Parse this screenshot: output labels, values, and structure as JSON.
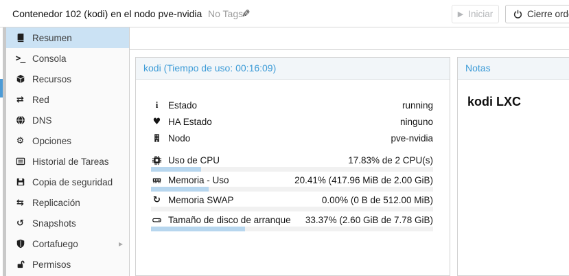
{
  "titlebar": {
    "title": "Contenedor 102 (kodi) en el nodo pve-nvidia",
    "tags_label": "No Tags",
    "start_button": "Iniciar",
    "shutdown_button": "Cierre ordenado"
  },
  "icons": {
    "terminal": ">_",
    "network": "⇄",
    "gear": "⚙",
    "replication": "⇆",
    "history": "↺",
    "chevron_right": "▸",
    "play": "▶",
    "pencil": "✎",
    "swap": "↻",
    "info": "i",
    "heart": "♥"
  },
  "sidebar": {
    "items": [
      {
        "label": "Resumen",
        "icon": "book-icon",
        "selected": true
      },
      {
        "label": "Consola",
        "icon": "terminal-icon",
        "selected": false
      },
      {
        "label": "Recursos",
        "icon": "cube-icon",
        "selected": false
      },
      {
        "label": "Red",
        "icon": "network-icon",
        "selected": false
      },
      {
        "label": "DNS",
        "icon": "globe-icon",
        "selected": false
      },
      {
        "label": "Opciones",
        "icon": "gear-icon",
        "selected": false
      },
      {
        "label": "Historial de Tareas",
        "icon": "task-list-icon",
        "selected": false
      },
      {
        "label": "Copia de seguridad",
        "icon": "floppy-icon",
        "selected": false
      },
      {
        "label": "Replicación",
        "icon": "replication-icon",
        "selected": false
      },
      {
        "label": "Snapshots",
        "icon": "history-icon",
        "selected": false
      },
      {
        "label": "Cortafuego",
        "icon": "shield-icon",
        "selected": false,
        "has_submenu": true
      },
      {
        "label": "Permisos",
        "icon": "unlock-icon",
        "selected": false
      }
    ]
  },
  "status_panel": {
    "title": "kodi (Tiempo de uso: 00:16:09)",
    "rows": [
      {
        "icon": "info-icon",
        "label": "Estado",
        "value": "running"
      },
      {
        "icon": "heartbeat-icon",
        "label": "HA Estado",
        "value": "ninguno"
      },
      {
        "icon": "building-icon",
        "label": "Nodo",
        "value": "pve-nvidia"
      }
    ],
    "usage_rows": [
      {
        "icon": "cpu-icon",
        "label": "Uso de CPU",
        "value": "17.83% de 2 CPU(s)",
        "percent": 17.83
      },
      {
        "icon": "memory-icon",
        "label": "Memoria - Uso",
        "value": "20.41% (417.96 MiB de 2.00 GiB)",
        "percent": 20.41
      },
      {
        "icon": "swap-icon",
        "label": "Memoria SWAP",
        "value": "0.00% (0 B de 512.00 MiB)",
        "percent": 0
      },
      {
        "icon": "disk-icon",
        "label": "Tamaño de disco de arranque",
        "value": "33.37% (2.60 GiB de 7.78 GiB)",
        "percent": 33.37
      }
    ]
  },
  "notes_panel": {
    "title": "Notas",
    "content": "kodi LXC"
  },
  "colors": {
    "accent_blue": "#3c9bd7",
    "selected_item_bg": "#cbe2f4",
    "progress_fill": "#b7d6ee",
    "progress_track": "#f1f1f1",
    "tree_selection": "#4d9bd6",
    "disabled_text": "#b3b5b8"
  }
}
